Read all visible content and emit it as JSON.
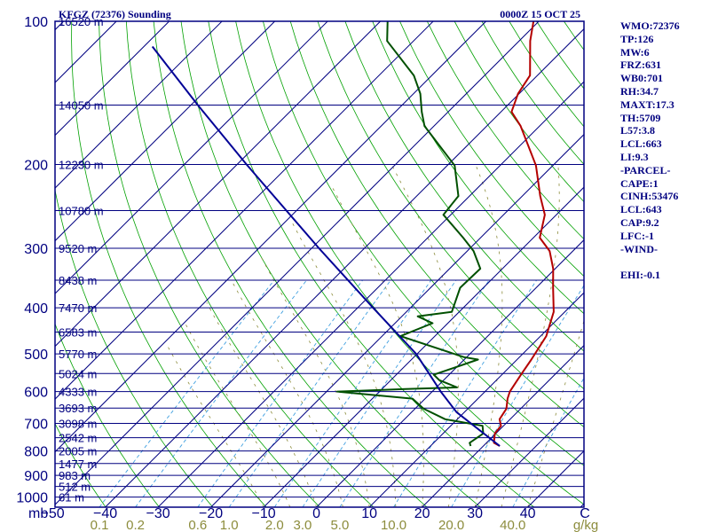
{
  "header": {
    "station": "KFGZ (72376) Sounding",
    "time": "0000Z 15 OCT 25"
  },
  "indices": [
    "WMO:72376",
    "TP:126",
    "MW:6",
    "FRZ:631",
    "WB0:701",
    "RH:34.7",
    "MAXT:17.3",
    "TH:5709",
    "L57:3.8",
    "LCL:663",
    "LI:9.3",
    "-PARCEL-",
    "CAPE:1",
    "CINH:53476",
    "LCL:643",
    "CAP:9.2",
    "LFC:-1",
    "-WIND-",
    "",
    "EHI:-0.1"
  ],
  "colors": {
    "frame": "#000080",
    "isobar": "#000080",
    "isotherm": "#000080",
    "dry_adiabat": "#00a000",
    "moist_adiabat": "#8c8c3c",
    "mixing_ratio": "#40a0e0",
    "temperature": "#b40000",
    "dewpoint": "#005000",
    "parcel": "#000096",
    "mixing_labels": "#8c8c3c"
  },
  "chart_data": {
    "type": "line",
    "title": "KFGZ (72376) Sounding",
    "xlabel": "",
    "ylabel": "mb",
    "x_unit": "C",
    "x_ticks": [
      -50,
      -40,
      -30,
      -20,
      -10,
      0,
      10,
      20,
      30,
      40
    ],
    "xlim": [
      -50,
      50
    ],
    "ylim": [
      1050,
      100
    ],
    "pressure_labels": [
      "100",
      "200",
      "300",
      "400",
      "500",
      "600",
      "700",
      "800",
      "900",
      "1000"
    ],
    "height_labels": [
      {
        "p": 100,
        "h": "16520 m"
      },
      {
        "p": 150,
        "h": "14050 m"
      },
      {
        "p": 200,
        "h": "12230 m"
      },
      {
        "p": 250,
        "h": "10780 m"
      },
      {
        "p": 300,
        "h": "9520 m"
      },
      {
        "p": 350,
        "h": "8438 m"
      },
      {
        "p": 400,
        "h": "7470 m"
      },
      {
        "p": 450,
        "h": "6583 m"
      },
      {
        "p": 500,
        "h": "5770 m"
      },
      {
        "p": 550,
        "h": "5024 m"
      },
      {
        "p": 600,
        "h": "4333 m"
      },
      {
        "p": 650,
        "h": "3693 m"
      },
      {
        "p": 700,
        "h": "3098 m"
      },
      {
        "p": 750,
        "h": "2542 m"
      },
      {
        "p": 800,
        "h": "2005 m"
      },
      {
        "p": 850,
        "h": "1477 m"
      },
      {
        "p": 900,
        "h": "983 m"
      },
      {
        "p": 950,
        "h": "512 m"
      },
      {
        "p": 1000,
        "h": "61 m"
      }
    ],
    "mixing_ratio_unit": "g/kg",
    "mixing_ratio_labels": [
      "0.1",
      "0.2",
      "0.6",
      "1.0",
      "2.0",
      "3.0",
      "5.0",
      "10.0",
      "20.0",
      "40.0"
    ],
    "series": [
      {
        "key": "temperature",
        "points": [
          [
            781,
            23.1
          ],
          [
            769,
            21.4
          ],
          [
            735,
            19.8
          ],
          [
            708,
            19.5
          ],
          [
            686,
            18.0
          ],
          [
            652,
            17.3
          ],
          [
            621,
            15.6
          ],
          [
            600,
            14.7
          ],
          [
            553,
            13.6
          ],
          [
            514,
            12.7
          ],
          [
            459,
            11.1
          ],
          [
            408,
            7.9
          ],
          [
            363,
            3.2
          ],
          [
            331,
            -0.4
          ],
          [
            304,
            -4.4
          ],
          [
            285,
            -8.8
          ],
          [
            255,
            -12.2
          ],
          [
            233,
            -16.6
          ],
          [
            201,
            -23.2
          ],
          [
            166,
            -33.6
          ],
          [
            155,
            -38.0
          ],
          [
            142,
            -40.2
          ],
          [
            130,
            -41.4
          ],
          [
            110,
            -47.9
          ],
          [
            97,
            -52.0
          ]
        ]
      },
      {
        "key": "dewpoint",
        "points": [
          [
            781,
            17.6
          ],
          [
            769,
            16.8
          ],
          [
            735,
            17.6
          ],
          [
            708,
            16.0
          ],
          [
            686,
            7.7
          ],
          [
            652,
            1.6
          ],
          [
            621,
            -2.4
          ],
          [
            600,
            -18.0
          ],
          [
            593,
            -5.5
          ],
          [
            588,
            3.9
          ],
          [
            568,
            -0.8
          ],
          [
            553,
            -2.9
          ],
          [
            514,
            2.6
          ],
          [
            508,
            -0.5
          ],
          [
            459,
            -16.5
          ],
          [
            431,
            -12.9
          ],
          [
            417,
            -17.0
          ],
          [
            408,
            -11.4
          ],
          [
            363,
            -14.4
          ],
          [
            331,
            -14.2
          ],
          [
            304,
            -18.8
          ],
          [
            285,
            -23.3
          ],
          [
            255,
            -31.4
          ],
          [
            233,
            -32.1
          ],
          [
            201,
            -38.6
          ],
          [
            166,
            -51.8
          ],
          [
            155,
            -55.0
          ],
          [
            142,
            -58.7
          ],
          [
            130,
            -63.4
          ],
          [
            110,
            -75.0
          ],
          [
            97,
            -79.8
          ]
        ]
      },
      {
        "key": "parcel",
        "points": [
          [
            781,
            23.1
          ],
          [
            663,
            8.5
          ],
          [
            600,
            1.6
          ],
          [
            500,
            -10.2
          ],
          [
            400,
            -27.1
          ],
          [
            300,
            -48.6
          ],
          [
            200,
            -78.2
          ],
          [
            150,
            -98.7
          ],
          [
            113,
            -118.4
          ]
        ]
      }
    ]
  }
}
